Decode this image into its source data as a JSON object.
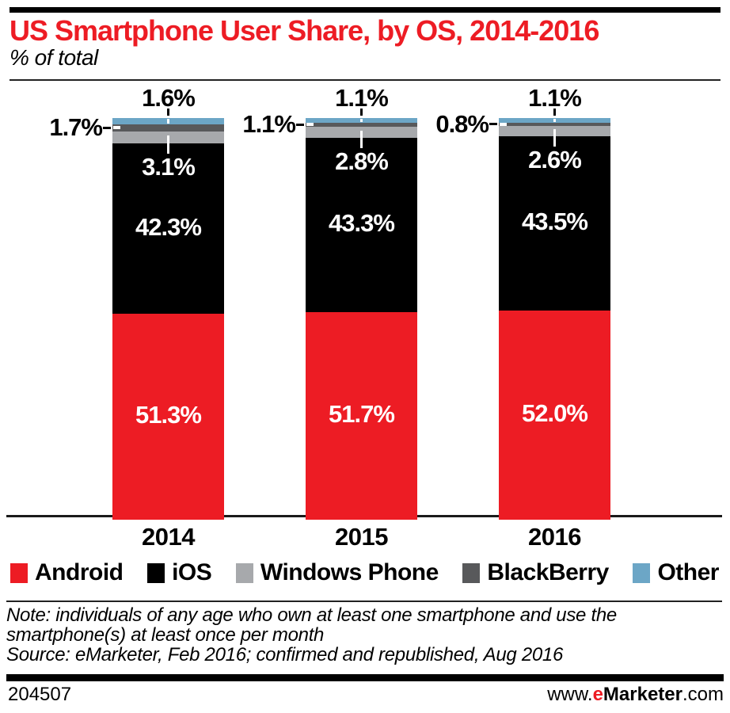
{
  "header": {
    "title": "US Smartphone User Share, by OS, 2014-2016",
    "subtitle": "% of total"
  },
  "chart_data": {
    "type": "bar",
    "stacked": true,
    "orientation": "vertical",
    "unit": "%",
    "title": "US Smartphone User Share, by OS, 2014-2016",
    "xlabel": "",
    "ylabel": "% of total",
    "ylim": [
      0,
      100
    ],
    "grid": false,
    "legend_position": "bottom",
    "categories": [
      "2014",
      "2015",
      "2016"
    ],
    "series": [
      {
        "name": "Android",
        "color": "#ed1c24",
        "label_style": "inside",
        "values": [
          51.3,
          51.7,
          52.0
        ]
      },
      {
        "name": "iOS",
        "color": "#000000",
        "label_style": "inside",
        "values": [
          42.3,
          43.3,
          43.5
        ]
      },
      {
        "name": "Windows Phone",
        "color": "#a7a9ac",
        "label_style": "callout-below",
        "values": [
          3.1,
          2.8,
          2.6
        ]
      },
      {
        "name": "BlackBerry",
        "color": "#58595b",
        "label_style": "callout-left",
        "values": [
          1.7,
          1.1,
          0.8
        ]
      },
      {
        "name": "Other",
        "color": "#6ca6c6",
        "label_style": "callout-above",
        "values": [
          1.6,
          1.1,
          1.1
        ]
      }
    ]
  },
  "note": {
    "note_text": "Note: individuals of any age who own at least one smartphone and use the smartphone(s) at least once per month",
    "source_text": "Source: eMarketer, Feb 2016; confirmed and republished, Aug 2016"
  },
  "footer": {
    "chart_id": "204507",
    "url_prefix": "www.",
    "url_brand_first_letter": "e",
    "url_brand_rest": "Marketer",
    "url_suffix": ".com"
  },
  "colors": {
    "accent_red": "#ed1c24",
    "text_black": "#000000",
    "rule_dark": "#1a1a1a",
    "label_white": "#ffffff"
  }
}
